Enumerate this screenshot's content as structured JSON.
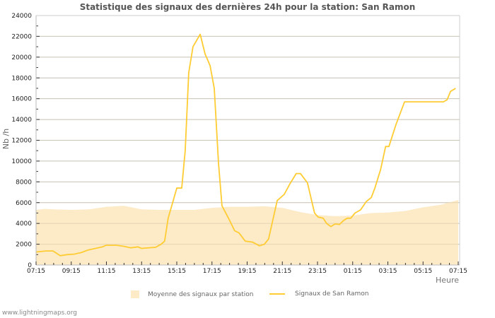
{
  "chart_data": {
    "type": "line",
    "title": "Statistique des signaux des dernières 24h pour la station: San Ramon",
    "xlabel": "Heure",
    "ylabel": "Nb /h",
    "ylim": [
      0,
      24000
    ],
    "yticks": [
      0,
      2000,
      4000,
      6000,
      8000,
      10000,
      12000,
      14000,
      16000,
      18000,
      20000,
      22000,
      24000
    ],
    "xticks": [
      "07:15",
      "09:15",
      "11:15",
      "13:15",
      "15:15",
      "17:15",
      "19:15",
      "21:15",
      "23:15",
      "01:15",
      "03:15",
      "05:15",
      "07:15"
    ],
    "grid": true,
    "legend_position": "bottom",
    "series": [
      {
        "name": "Moyenne des signaux par station",
        "kind": "area",
        "color": "#fdebc8",
        "hours": [
          0,
          0.5,
          1,
          2,
          3,
          4,
          5,
          6,
          7,
          8,
          9,
          10,
          11,
          12,
          13,
          14,
          15,
          16,
          17,
          18,
          19,
          20,
          21,
          22,
          23,
          24
        ],
        "values": [
          5300,
          5400,
          5350,
          5300,
          5350,
          5600,
          5700,
          5350,
          5300,
          5300,
          5300,
          5500,
          5600,
          5600,
          5650,
          5500,
          5100,
          4800,
          4700,
          4750,
          5000,
          5050,
          5200,
          5550,
          5800,
          6250
        ]
      },
      {
        "name": "Signaux de San Ramon",
        "kind": "line",
        "color": "#ffcc33",
        "hours": [
          0,
          0.56,
          0.96,
          1.37,
          1.77,
          2.17,
          2.57,
          2.97,
          3.38,
          3.78,
          3.98,
          4.58,
          4.98,
          5.39,
          5.79,
          5.99,
          6.39,
          6.79,
          7.11,
          7.31,
          7.51,
          7.8,
          8.0,
          8.28,
          8.48,
          8.68,
          8.92,
          9.33,
          9.61,
          9.89,
          10.13,
          10.37,
          10.57,
          10.97,
          11.29,
          11.53,
          11.89,
          12.3,
          12.7,
          12.98,
          13.22,
          13.71,
          14.11,
          14.43,
          14.79,
          15.03,
          15.43,
          15.83,
          16.04,
          16.32,
          16.52,
          16.76,
          17.0,
          17.25,
          17.49,
          17.69,
          17.89,
          18.13,
          18.45,
          18.77,
          19.06,
          19.26,
          19.59,
          19.87,
          20.06,
          20.46,
          20.95,
          23.16,
          23.37,
          23.56,
          23.85
        ],
        "values": [
          1250,
          1350,
          1350,
          900,
          1000,
          1050,
          1200,
          1450,
          1600,
          1750,
          1900,
          1900,
          1800,
          1650,
          1750,
          1600,
          1650,
          1700,
          2000,
          2300,
          4500,
          6200,
          7400,
          7400,
          11000,
          18500,
          21000,
          22200,
          20300,
          19200,
          17000,
          9800,
          5700,
          4400,
          3300,
          3100,
          2300,
          2200,
          1850,
          2000,
          2500,
          6200,
          6800,
          7800,
          8800,
          8800,
          7900,
          5000,
          4600,
          4500,
          4000,
          3700,
          3950,
          3900,
          4300,
          4500,
          4500,
          5000,
          5300,
          6100,
          6500,
          7400,
          9200,
          11400,
          11400,
          13500,
          15700,
          15700,
          15900,
          16700,
          17000
        ]
      }
    ]
  },
  "legend": {
    "items": [
      {
        "label": "Moyenne des signaux par station",
        "kind": "area",
        "color": "#fdebc8"
      },
      {
        "label": "Signaux de San Ramon",
        "kind": "line",
        "color": "#ffcc33"
      }
    ]
  },
  "footer": {
    "site": "www.lightningmaps.org"
  }
}
